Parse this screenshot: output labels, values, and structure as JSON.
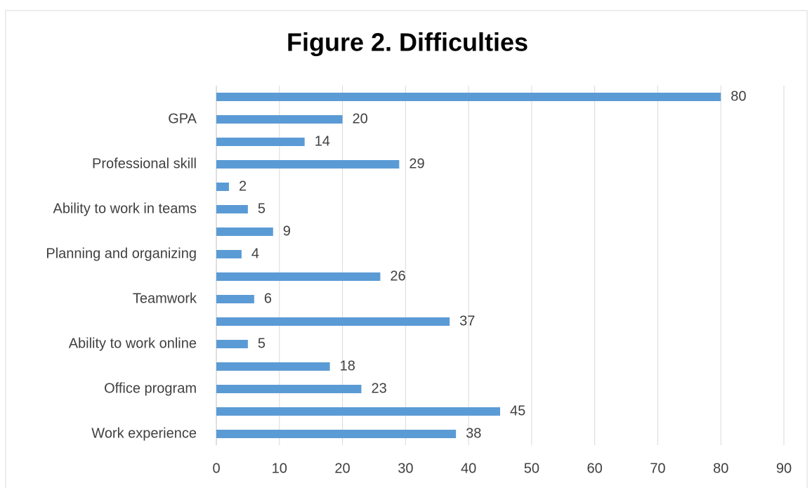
{
  "chart_data": {
    "type": "bar",
    "orientation": "horizontal",
    "title": "Figure 2. Difficulties",
    "categories": [
      null,
      "GPA",
      null,
      "Professional skill",
      null,
      "Ability to work in teams",
      null,
      "Planning and organizing",
      null,
      "Teamwork",
      null,
      "Ability to work online",
      null,
      "Office program",
      null,
      "Work experience"
    ],
    "values": [
      80,
      20,
      14,
      29,
      2,
      5,
      9,
      4,
      26,
      6,
      37,
      5,
      18,
      23,
      45,
      38
    ],
    "color": "#5b9bd5",
    "xlim": [
      0,
      90
    ],
    "xticks": [
      0,
      10,
      20,
      30,
      40,
      50,
      60,
      70,
      80,
      90
    ],
    "grid": true
  }
}
